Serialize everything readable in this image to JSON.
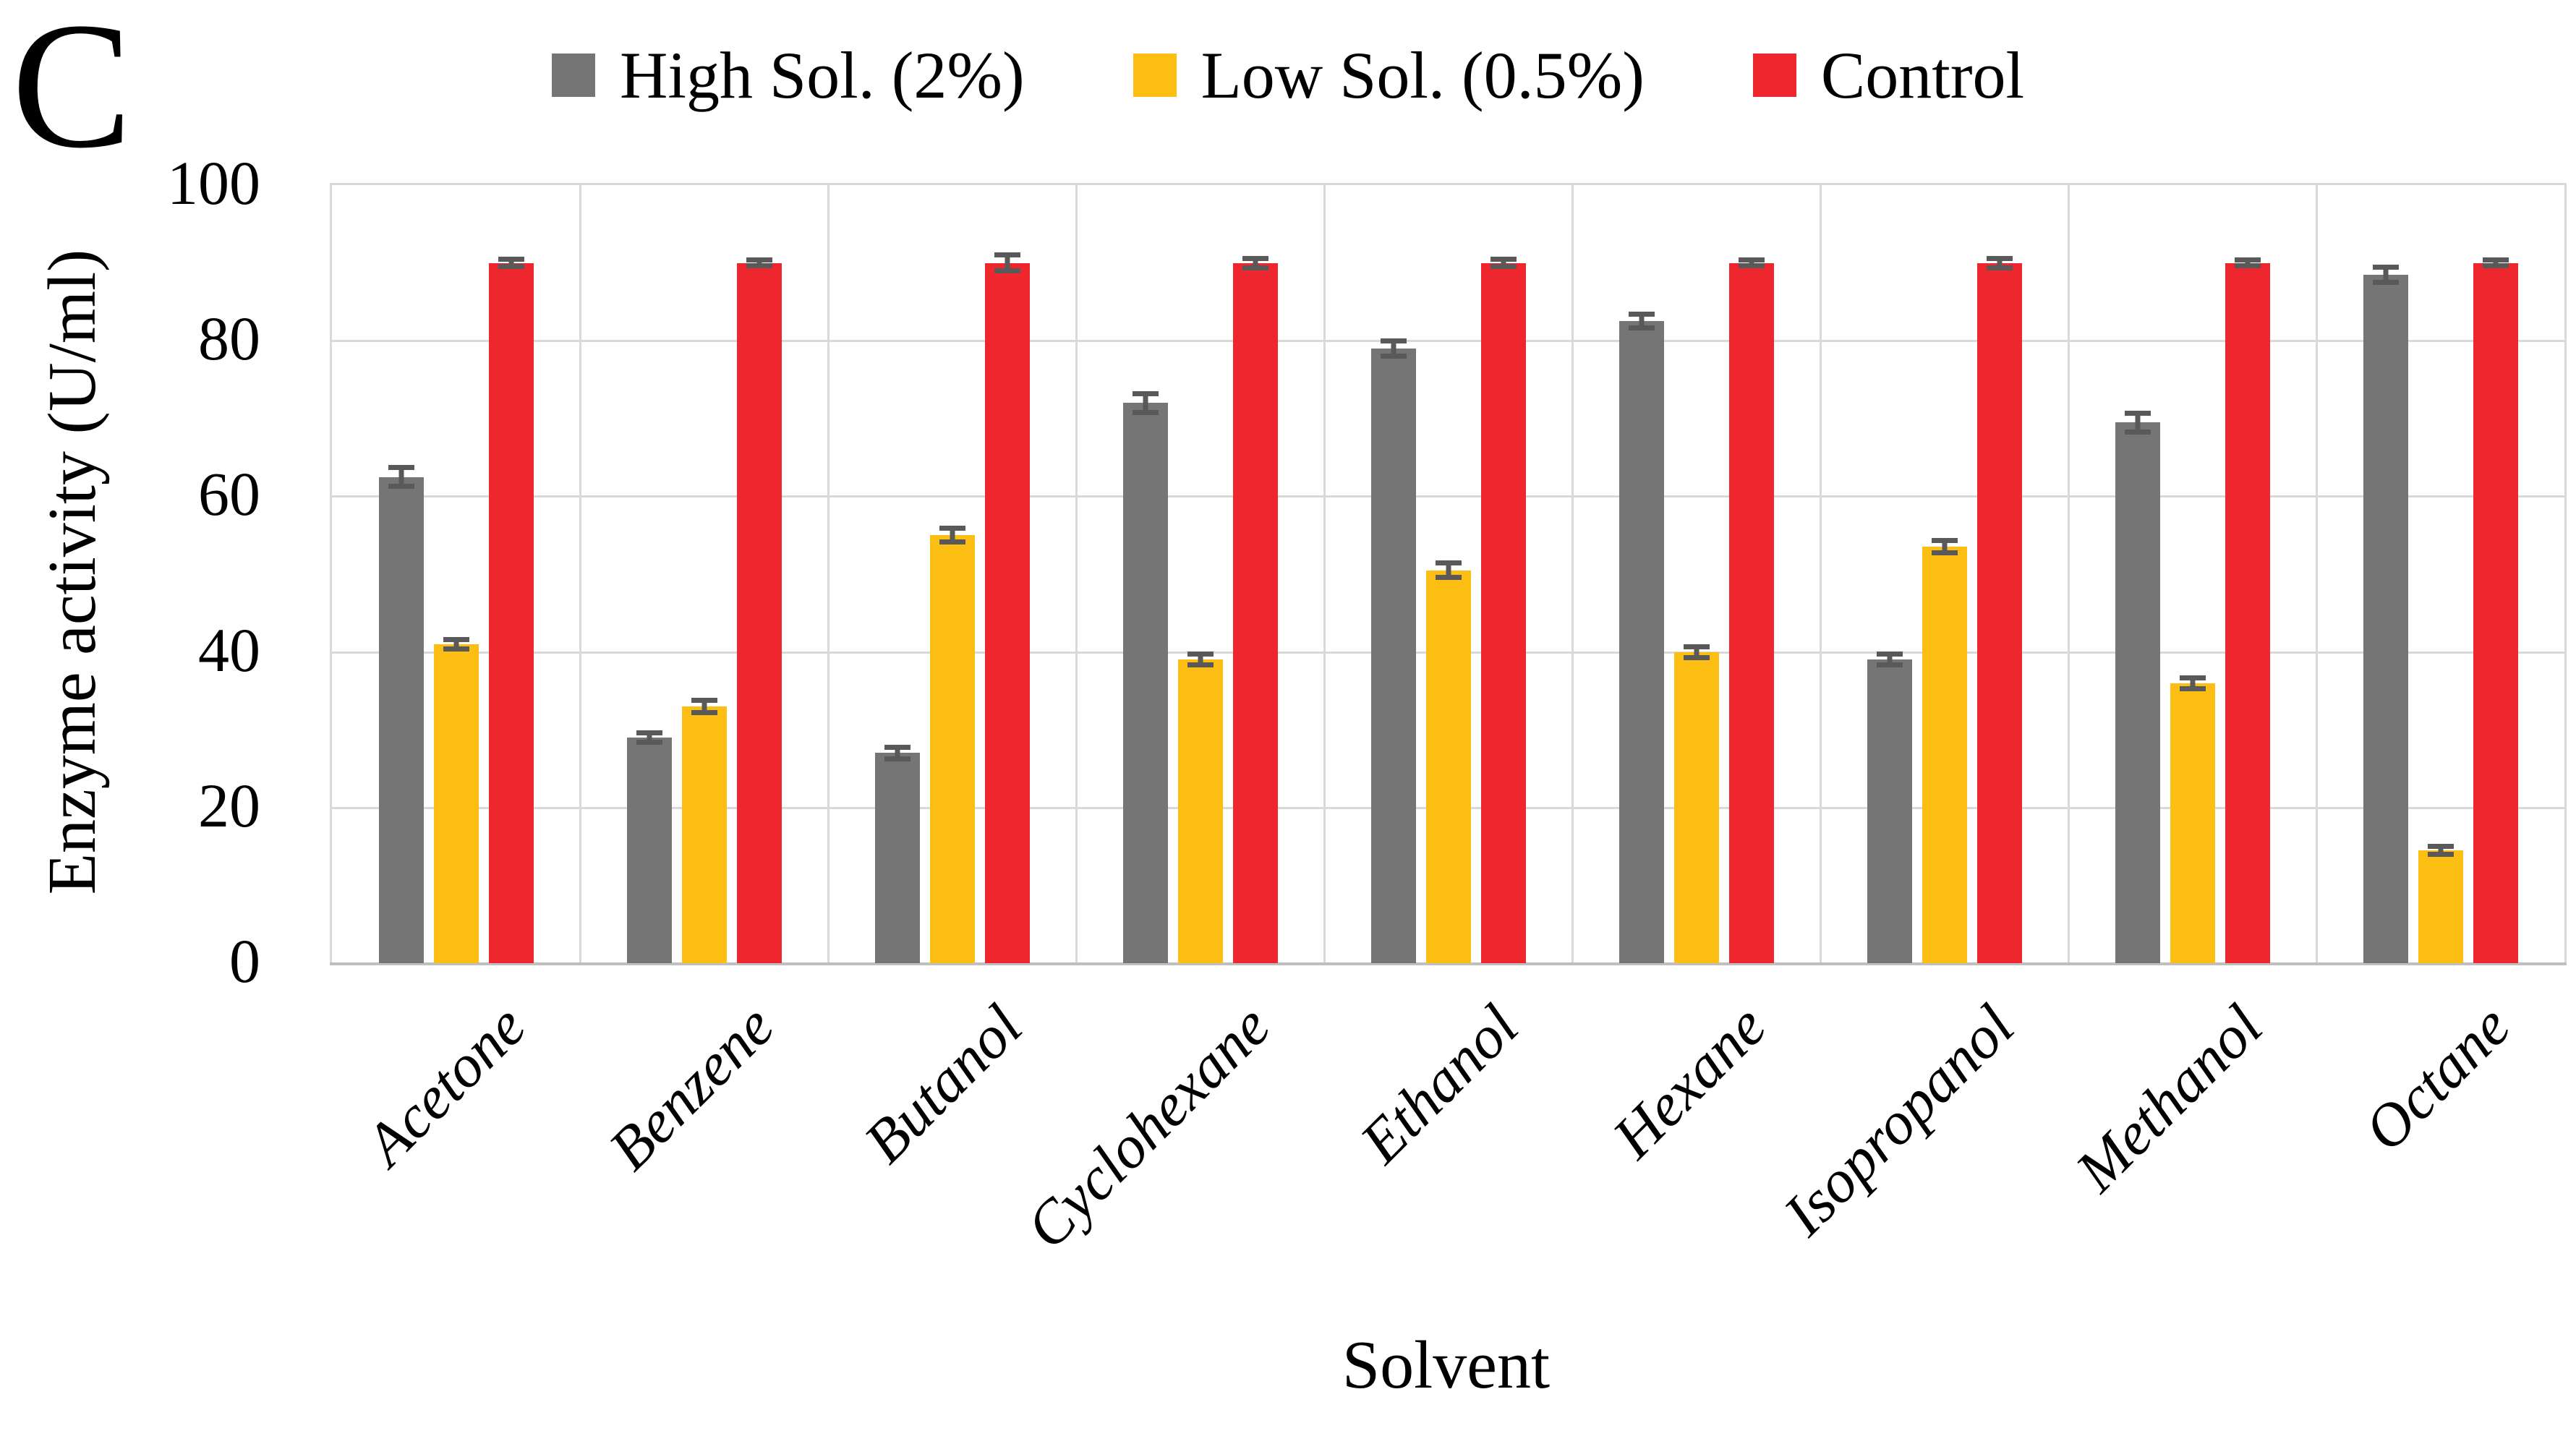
{
  "panel_label": "C",
  "legend": [
    {
      "label": "High Sol. (2%)",
      "color": "#757575"
    },
    {
      "label": "Low Sol. (0.5%)",
      "color": "#FCBE12"
    },
    {
      "label": "Control",
      "color": "#EE272E"
    }
  ],
  "axes": {
    "ylabel": "Enzyme activity (U/ml)",
    "xlabel": "Solvent"
  },
  "chart_data": {
    "type": "bar",
    "title": "",
    "xlabel": "Solvent",
    "ylabel": "Enzyme activity (U/ml)",
    "ylim": [
      0,
      100
    ],
    "yticks": [
      0,
      20,
      40,
      60,
      80,
      100
    ],
    "grid": "horizontal gridlines every 20 units; vertical category-boundary gridlines; light gray",
    "legend_position": "top-center",
    "categories": [
      "Acetone",
      "Benzene",
      "Butanol",
      "Cyclohexane",
      "Ethanol",
      "Hexane",
      "Isopropanol",
      "Methanol",
      "Octane"
    ],
    "series": [
      {
        "name": "High Sol. (2%)",
        "color": "#757575",
        "values": [
          62.5,
          29,
          27,
          72,
          79,
          82.5,
          39,
          69.5,
          88.5
        ],
        "errors": [
          1.2,
          0.6,
          0.7,
          1.2,
          1.0,
          0.9,
          0.7,
          1.2,
          1.0
        ]
      },
      {
        "name": "Low Sol. (0.5%)",
        "color": "#FCBE12",
        "values": [
          41,
          33,
          55,
          39,
          50.5,
          40,
          53.5,
          36,
          14.5
        ],
        "errors": [
          0.6,
          0.8,
          0.9,
          0.7,
          0.9,
          0.7,
          0.8,
          0.7,
          0.5
        ]
      },
      {
        "name": "Control",
        "color": "#EE272E",
        "values": [
          90,
          90,
          90,
          90,
          90,
          90,
          90,
          90,
          90
        ],
        "errors": [
          0.5,
          0.4,
          1.0,
          0.6,
          0.5,
          0.4,
          0.6,
          0.4,
          0.4
        ]
      }
    ],
    "error_bar_color": "#595959",
    "gridline_color": "#D9D9D9",
    "axis_line_color": "#BFBFBF"
  }
}
